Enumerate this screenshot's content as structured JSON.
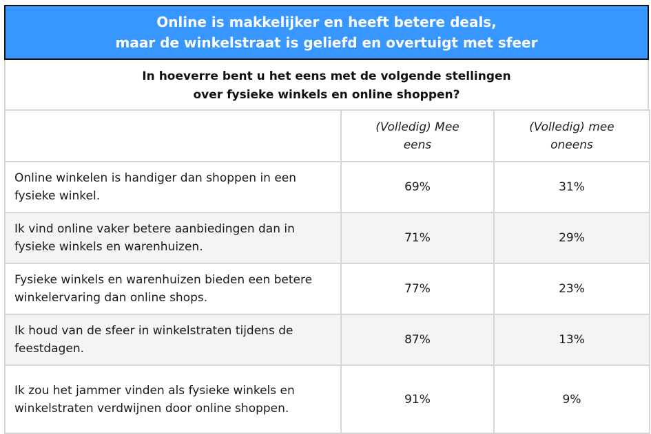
{
  "title": {
    "line1": "Online is makkelijker en heeft betere deals,",
    "line2": "maar de winkelstraat is geliefd en overtuigt met sfeer"
  },
  "subtitle": {
    "line1": "In hoeverre bent u het eens met de volgende stellingen",
    "line2": "over fysieke winkels en online shoppen?"
  },
  "columns": {
    "statement": "",
    "agree": "(Volledig) Mee eens",
    "disagree": "(Volledig) mee oneens"
  },
  "rows": [
    {
      "statement": "Online winkelen is handiger dan shoppen in een fysieke winkel.",
      "agree": "69%",
      "disagree": "31%"
    },
    {
      "statement": "Ik vind online vaker betere aanbiedingen dan in fysieke winkels en warenhuizen.",
      "agree": "71%",
      "disagree": "29%"
    },
    {
      "statement": "Fysieke winkels en warenhuizen bieden een betere winkelervaring dan online shops.",
      "agree": "77%",
      "disagree": "23%"
    },
    {
      "statement": "Ik houd van de sfeer in winkelstraten tijdens de feestdagen.",
      "agree": "87%",
      "disagree": "13%"
    },
    {
      "statement": "Ik zou het jammer vinden als fysieke winkels en winkelstraten verdwijnen door online shoppen.",
      "agree": "91%",
      "disagree": "9%"
    }
  ],
  "colors": {
    "title_band": "#3797ff",
    "title_text": "#ffffff",
    "row_shade": "#f4f4f2",
    "grid": "#d6d6d6"
  }
}
